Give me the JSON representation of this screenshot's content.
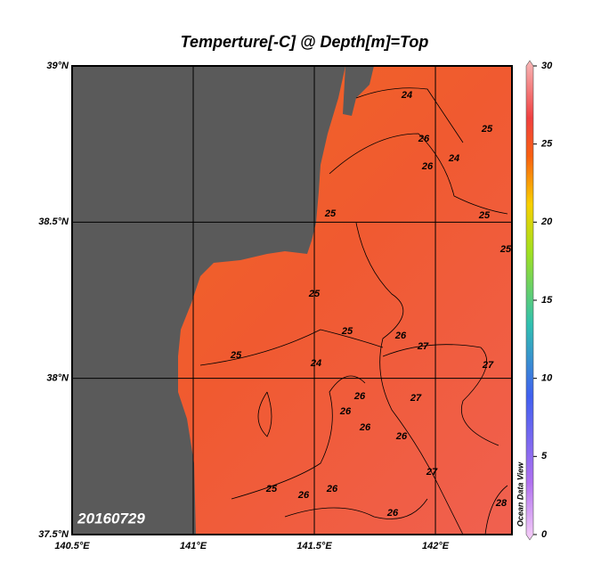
{
  "chart_data": {
    "type": "map",
    "title": "Temperture[-C] @ Depth[m]=Top",
    "xlim": [
      140.5,
      142.316
    ],
    "ylim": [
      37.5,
      39
    ],
    "xticks": [
      {
        "value": 140.5,
        "label": "140.5°E"
      },
      {
        "value": 141,
        "label": "141°E"
      },
      {
        "value": 141.5,
        "label": "141.5°E"
      },
      {
        "value": 142,
        "label": "142°E"
      }
    ],
    "yticks": [
      {
        "value": 37.5,
        "label": "37.5°N"
      },
      {
        "value": 38,
        "label": "38°N"
      },
      {
        "value": 38.5,
        "label": "38.5°N"
      },
      {
        "value": 39,
        "label": "39°N"
      }
    ],
    "grid": true,
    "clim": [
      0,
      30
    ],
    "cticks": [
      0,
      5,
      10,
      15,
      20,
      25,
      30
    ],
    "annotation": "20160729",
    "watermark": "Ocean Data View",
    "contour_labels": [
      24,
      25,
      26,
      24,
      26,
      25,
      25,
      25,
      25,
      26,
      25,
      27,
      24,
      27,
      26,
      27,
      26,
      26,
      26,
      27,
      26,
      26,
      25,
      26,
      28,
      25
    ]
  }
}
